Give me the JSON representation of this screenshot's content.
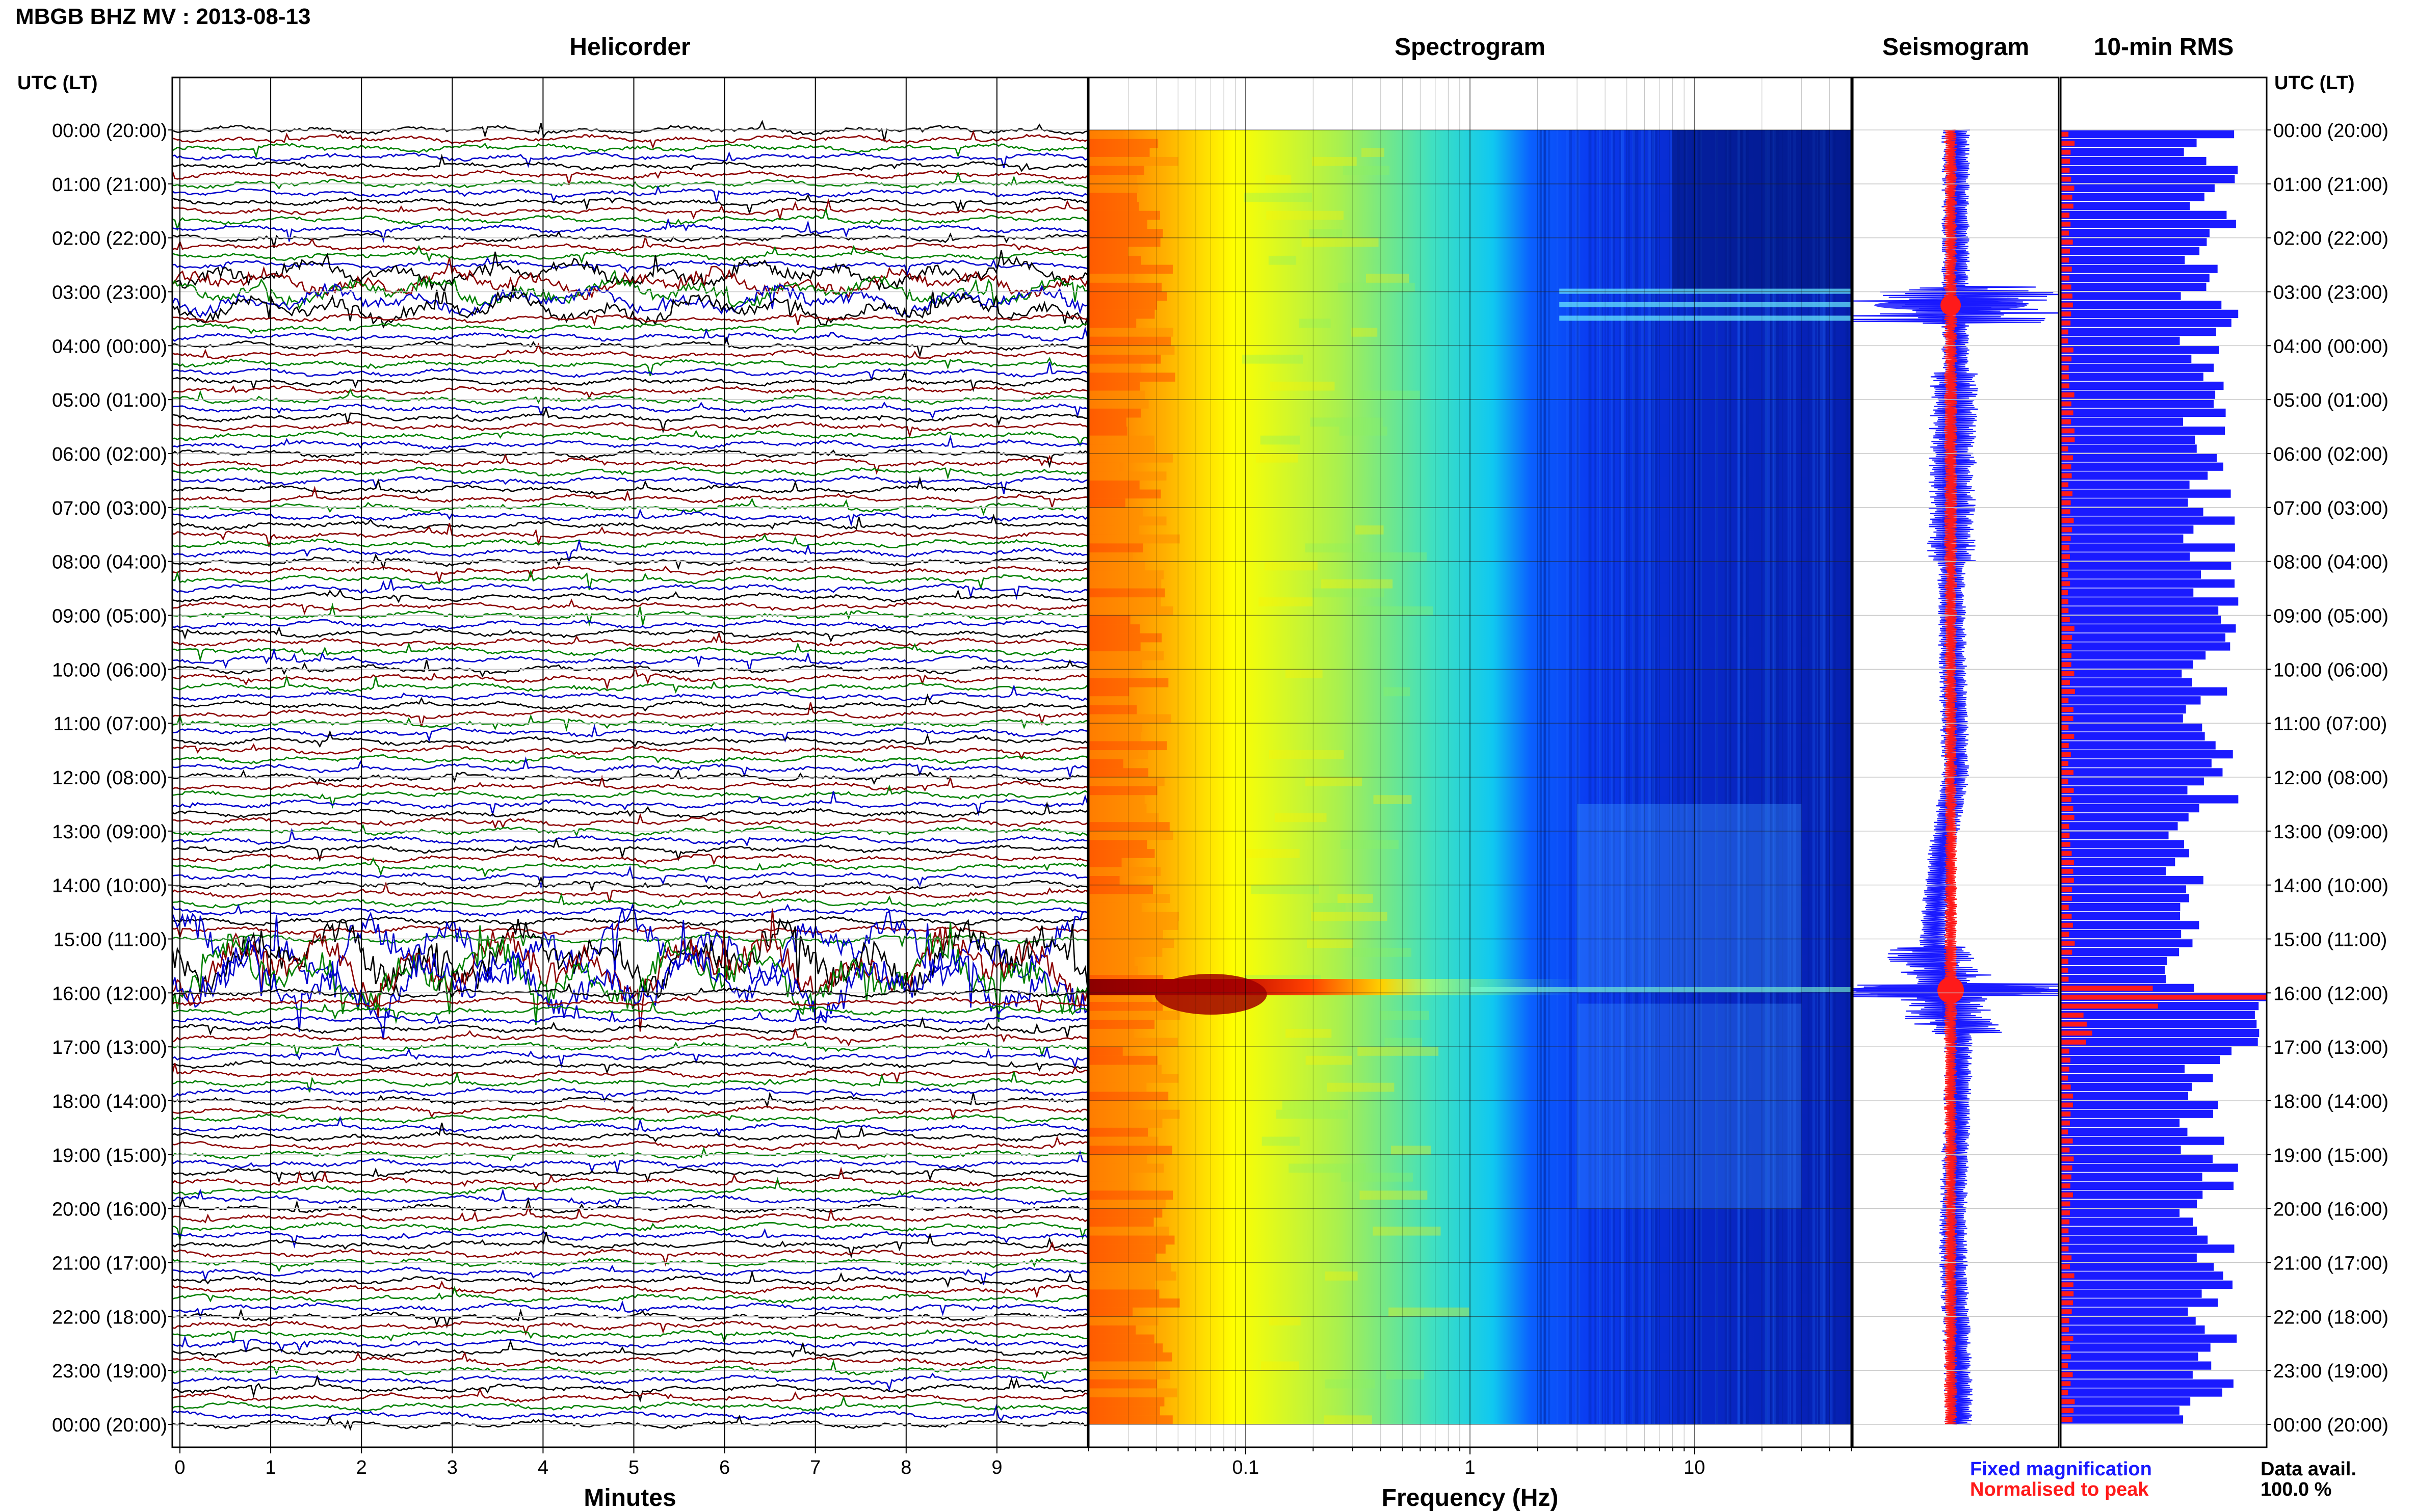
{
  "title": "MBGB BHZ MV : 2013-08-13",
  "panels": {
    "helicorder": "Helicorder",
    "spectrogram": "Spectrogram",
    "seismogram": "Seismogram",
    "rms": "10-min RMS"
  },
  "utc_header": "UTC (LT)",
  "time_labels": [
    "00:00 (20:00)",
    "01:00 (21:00)",
    "02:00 (22:00)",
    "03:00 (23:00)",
    "04:00 (00:00)",
    "05:00 (01:00)",
    "06:00 (02:00)",
    "07:00 (03:00)",
    "08:00 (04:00)",
    "09:00 (05:00)",
    "10:00 (06:00)",
    "11:00 (07:00)",
    "12:00 (08:00)",
    "13:00 (09:00)",
    "14:00 (10:00)",
    "15:00 (11:00)",
    "16:00 (12:00)",
    "17:00 (13:00)",
    "18:00 (14:00)",
    "19:00 (15:00)",
    "20:00 (16:00)",
    "21:00 (17:00)",
    "22:00 (18:00)",
    "23:00 (19:00)",
    "00:00 (20:00)"
  ],
  "legend": {
    "fixed": "Fixed magnification",
    "normalised": "Normalised to peak",
    "fixed_color": "#1a1aff",
    "normalised_color": "#ff1a1a"
  },
  "availability": {
    "label": "Data avail.",
    "value": "100.0 %"
  },
  "chart_data": [
    {
      "type": "line",
      "panel": "Helicorder",
      "xlabel": "Minutes",
      "xlim": [
        0,
        10
      ],
      "x_ticks": [
        "0",
        "1",
        "2",
        "3",
        "4",
        "5",
        "6",
        "7",
        "8",
        "9"
      ],
      "trace_colors": [
        "#000000",
        "#8b0000",
        "#008000",
        "#0000cd"
      ],
      "rows": 144,
      "high_amplitude_hours": [
        3,
        15.5
      ]
    },
    {
      "type": "heatmap",
      "panel": "Spectrogram",
      "xlabel": "Frequency (Hz)",
      "x_scale": "log",
      "xlim": [
        0.02,
        50
      ],
      "x_ticks": [
        "0.1",
        "1",
        "10"
      ],
      "colormap": [
        "#00008b",
        "#0000ff",
        "#00bfff",
        "#00ffff",
        "#7fff7f",
        "#ffff00",
        "#ffa500",
        "#ff4500",
        "#8b0000"
      ]
    },
    {
      "type": "line",
      "panel": "Seismogram",
      "series": [
        {
          "name": "Fixed magnification",
          "color": "#1a1aff"
        },
        {
          "name": "Normalised to peak",
          "color": "#ff1a1a"
        }
      ],
      "event_hours": [
        3.25,
        15.95
      ]
    },
    {
      "type": "bar",
      "panel": "10-min RMS",
      "series": [
        {
          "name": "Fixed magnification",
          "color": "#1a1aff"
        },
        {
          "name": "Normalised to peak",
          "color": "#ff1a1a"
        }
      ],
      "peak_hour": 15.95
    }
  ]
}
